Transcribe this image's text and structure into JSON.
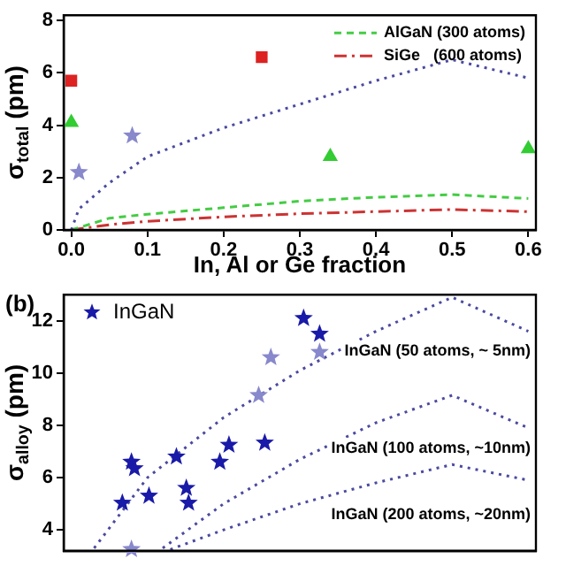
{
  "chart_data": [
    {
      "type": "scatter",
      "xlabel": "In, Al or Ge fraction",
      "ylabel": "σ$_{total}$ (pm)",
      "xlim": [
        -0.01,
        0.61
      ],
      "ylim": [
        0,
        8.2
      ],
      "xticks": [
        {
          "value": 0,
          "label": "0.0"
        },
        {
          "value": 0.1,
          "label": "0.1"
        },
        {
          "value": 0.2,
          "label": "0.2"
        },
        {
          "value": 0.3,
          "label": "0.3"
        },
        {
          "value": 0.4,
          "label": "0.4"
        },
        {
          "value": 0.5,
          "label": "0.5"
        },
        {
          "value": 0.6,
          "label": "0.6"
        }
      ],
      "yticks": [
        0,
        2,
        4,
        6,
        8
      ],
      "grid": false,
      "legend": "top right",
      "series": [
        {
          "type": "line",
          "line_style": "dotted",
          "marker": "none",
          "color": "#4a4aa0",
          "x": [
            0,
            0.01,
            0.05,
            0.1,
            0.2,
            0.3,
            0.4,
            0.5,
            0.6
          ],
          "values": [
            0,
            0.8,
            1.8,
            2.8,
            3.9,
            4.8,
            5.7,
            6.5,
            5.8
          ]
        },
        {
          "type": "line",
          "name": "AlGaN (300 atoms)",
          "line_style": "dashed",
          "marker": "none",
          "color": "#44cc44",
          "x": [
            0,
            0.05,
            0.1,
            0.2,
            0.3,
            0.4,
            0.5,
            0.6
          ],
          "values": [
            0,
            0.45,
            0.6,
            0.85,
            1.1,
            1.25,
            1.35,
            1.2
          ]
        },
        {
          "type": "line",
          "name": "SiGe   (600 atoms)",
          "line_style": "dashdot",
          "marker": "none",
          "color": "#cc3333",
          "x": [
            0,
            0.05,
            0.1,
            0.2,
            0.3,
            0.4,
            0.5,
            0.6
          ],
          "values": [
            0,
            0.2,
            0.33,
            0.5,
            0.62,
            0.7,
            0.78,
            0.7
          ]
        },
        {
          "type": "scatter",
          "marker": "square",
          "color": "#dd2222",
          "x": [
            0,
            0.25
          ],
          "values": [
            5.7,
            6.6
          ]
        },
        {
          "type": "scatter",
          "marker": "triangle",
          "color": "#33cc33",
          "x": [
            0,
            0.34,
            0.6
          ],
          "values": [
            4.1,
            2.8,
            3.1
          ]
        },
        {
          "type": "scatter",
          "marker": "star",
          "color": "#8888cc",
          "x": [
            0.01,
            0.08
          ],
          "values": [
            2.2,
            3.6
          ]
        }
      ]
    },
    {
      "type": "scatter",
      "ylabel": "σ$_{alloy}$ (pm)",
      "xlim": [
        -0.01,
        0.61
      ],
      "ylim": [
        3.2,
        13
      ],
      "yticks": [
        4,
        6,
        8,
        10,
        12
      ],
      "grid": false,
      "legend": "top left",
      "tick_labels": "y",
      "annotations": [
        "(b)",
        "InGaN (50 atoms, ~ 5nm)",
        "InGaN (100 atoms, ~10nm)",
        "InGaN (200 atoms, ~20nm)"
      ],
      "series": [
        {
          "type": "line",
          "line_style": "dotted",
          "marker": "none",
          "color": "#4a4aa0",
          "x": [
            0.03,
            0.1,
            0.2,
            0.3,
            0.4,
            0.5,
            0.6
          ],
          "values": [
            3.3,
            6.0,
            8.3,
            10.1,
            11.6,
            12.9,
            11.6
          ]
        },
        {
          "type": "line",
          "line_style": "dotted",
          "marker": "none",
          "color": "#4a4aa0",
          "x": [
            0.12,
            0.2,
            0.3,
            0.4,
            0.5,
            0.6
          ],
          "values": [
            3.3,
            5.0,
            6.7,
            8.1,
            9.15,
            7.9
          ]
        },
        {
          "type": "line",
          "line_style": "dotted",
          "marker": "none",
          "color": "#4a4aa0",
          "x": [
            0.13,
            0.2,
            0.3,
            0.4,
            0.5,
            0.6
          ],
          "values": [
            3.25,
            4.0,
            5.0,
            5.8,
            6.5,
            5.9
          ]
        },
        {
          "type": "scatter",
          "name": "InGaN",
          "marker": "star",
          "color": "#1a1aa8",
          "x": [
            0.067,
            0.079,
            0.083,
            0.102,
            0.138,
            0.151,
            0.154,
            0.195,
            0.207,
            0.254,
            0.305,
            0.326
          ],
          "values": [
            5.03,
            6.6,
            6.35,
            5.3,
            6.8,
            5.6,
            5.03,
            6.6,
            7.25,
            7.33,
            12.1,
            11.5
          ]
        },
        {
          "type": "scatter",
          "marker": "star",
          "color": "#8888cc",
          "x": [
            0.079,
            0.246,
            0.262,
            0.326
          ],
          "values": [
            3.26,
            9.15,
            10.6,
            10.8
          ]
        }
      ]
    }
  ]
}
